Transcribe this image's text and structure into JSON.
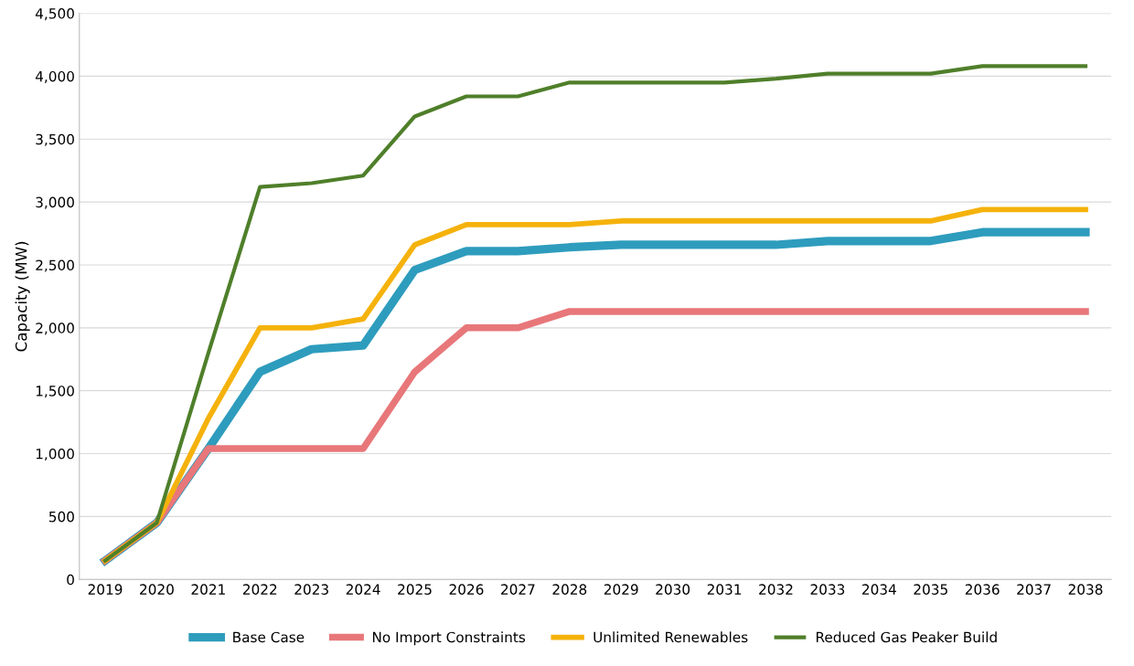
{
  "chart_data": {
    "type": "line",
    "ylabel": "Capacity (MW)",
    "categories": [
      "2019",
      "2020",
      "2021",
      "2022",
      "2023",
      "2024",
      "2025",
      "2026",
      "2027",
      "2028",
      "2029",
      "2030",
      "2031",
      "2032",
      "2033",
      "2034",
      "2035",
      "2036",
      "2037",
      "2038"
    ],
    "series": [
      {
        "name": "Base Case",
        "color": "#2e9cbd",
        "values": [
          150,
          450,
          1040,
          1650,
          1830,
          1860,
          2460,
          2610,
          2610,
          2640,
          2660,
          2660,
          2660,
          2660,
          2690,
          2690,
          2690,
          2760,
          2760,
          2760
        ]
      },
      {
        "name": "No Import Constraints",
        "color": "#e8777a",
        "values": [
          150,
          450,
          1040,
          1040,
          1040,
          1040,
          1650,
          2000,
          2000,
          2130,
          2130,
          2130,
          2130,
          2130,
          2130,
          2130,
          2130,
          2130,
          2130,
          2130
        ]
      },
      {
        "name": "Unlimited Renewables",
        "color": "#f5b20c",
        "values": [
          150,
          450,
          1280,
          2000,
          2000,
          2070,
          2660,
          2820,
          2820,
          2820,
          2850,
          2850,
          2850,
          2850,
          2850,
          2850,
          2850,
          2940,
          2940,
          2940
        ]
      },
      {
        "name": "Reduced Gas Peaker Build",
        "color": "#4f7f2a",
        "values": [
          150,
          450,
          1800,
          3120,
          3150,
          3210,
          3680,
          3840,
          3840,
          3950,
          3950,
          3950,
          3950,
          3980,
          4020,
          4020,
          4020,
          4080,
          4080,
          4080
        ]
      }
    ],
    "ylim": [
      0,
      4500
    ],
    "yticks": [
      {
        "value": 0,
        "label": "0"
      },
      {
        "value": 500,
        "label": "500"
      },
      {
        "value": 1000,
        "label": "1,000"
      },
      {
        "value": 1500,
        "label": "1,500"
      },
      {
        "value": 2000,
        "label": "2,000"
      },
      {
        "value": 2500,
        "label": "2,500"
      },
      {
        "value": 3000,
        "label": "3,000"
      },
      {
        "value": 3500,
        "label": "3,500"
      },
      {
        "value": 4000,
        "label": "4,000"
      },
      {
        "value": 4500,
        "label": "4,500"
      }
    ],
    "grid": "y",
    "legend": "bottom",
    "marker": "none",
    "line_style": "solid"
  }
}
